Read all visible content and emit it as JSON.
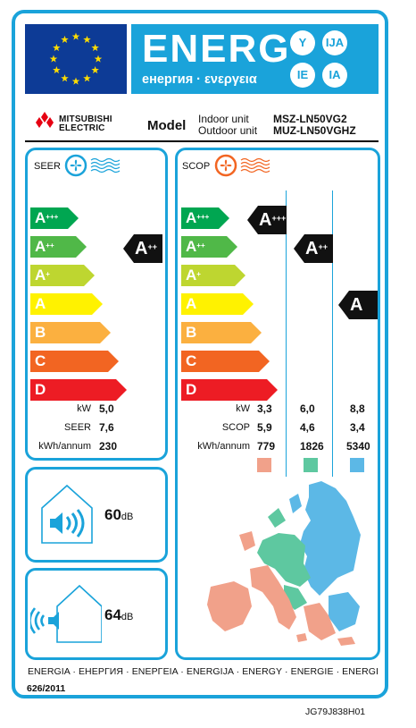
{
  "header": {
    "title": "ENERG",
    "subtitle": "енергия · ενεργεια",
    "lang_codes": [
      "Y",
      "IJA",
      "IE",
      "IA"
    ],
    "colors": {
      "frame": "#1aa3da",
      "eu_blue": "#0d3b96",
      "eu_star": "#ffdd00"
    }
  },
  "brand": {
    "line1": "MITSUBISHI",
    "line2": "ELECTRIC",
    "logo": "three-diamonds-logo"
  },
  "model": {
    "label": "Model",
    "indoor_label": "Indoor unit",
    "outdoor_label": "Outdoor unit",
    "indoor_code": "MSZ-LN50VG2",
    "outdoor_code": "MUZ-LN50VGHZ"
  },
  "scale": [
    {
      "base": "A",
      "sup": "+++",
      "color": "#00a651"
    },
    {
      "base": "A",
      "sup": "++",
      "color": "#50b848"
    },
    {
      "base": "A",
      "sup": "+",
      "color": "#bed630"
    },
    {
      "base": "A",
      "sup": "",
      "color": "#fff200"
    },
    {
      "base": "B",
      "sup": "",
      "color": "#fbb040"
    },
    {
      "base": "C",
      "sup": "",
      "color": "#f26522"
    },
    {
      "base": "D",
      "sup": "",
      "color": "#ed1c24"
    }
  ],
  "seer": {
    "label": "SEER",
    "icon": "cooling-fan-icon",
    "rating": {
      "base": "A",
      "sup": "++"
    },
    "rows": [
      {
        "label": "kW",
        "value": "5,0"
      },
      {
        "label": "SEER",
        "value": "7,6"
      },
      {
        "label": "kWh/annum",
        "value": "230"
      }
    ]
  },
  "scop": {
    "label": "SCOP",
    "icon": "heating-fan-icon",
    "ratings": [
      {
        "base": "A",
        "sup": "+++"
      },
      {
        "base": "A",
        "sup": "++"
      },
      {
        "base": "A",
        "sup": ""
      }
    ],
    "row_labels": [
      "kW",
      "SCOP",
      "kWh/annum"
    ],
    "columns": [
      {
        "kw": "3,3",
        "scop": "5,9",
        "kwh": "779",
        "color": "#f1a18a"
      },
      {
        "kw": "6,0",
        "scop": "4,6",
        "kwh": "1826",
        "color": "#5ec8a0"
      },
      {
        "kw": "8,8",
        "scop": "3,4",
        "kwh": "5340",
        "color": "#5cb8e6"
      }
    ]
  },
  "noise": {
    "indoor": {
      "value": "60",
      "unit": "dB",
      "icon": "indoor-speaker-house-icon"
    },
    "outdoor": {
      "value": "64",
      "unit": "dB",
      "icon": "outdoor-speaker-house-icon"
    }
  },
  "map": {
    "icon": "europe-climate-zones-map"
  },
  "footer": {
    "languages": "ENERGIA · ЕНЕРГИЯ · ΕΝΕΡΓΕΙΑ · ENERGIJA · ENERGY · ENERGIE · ENERGI",
    "regulation": "626/2011",
    "label_code": "JG79J838H01"
  }
}
